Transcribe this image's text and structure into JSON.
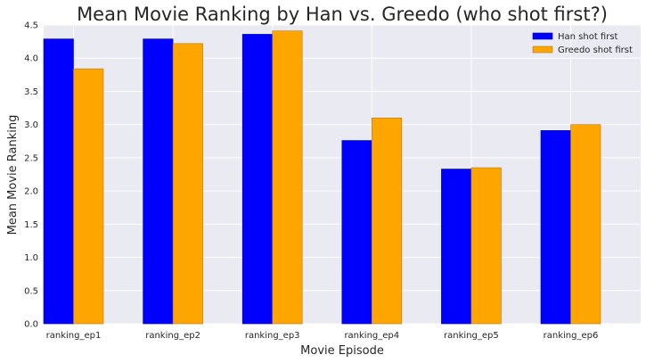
{
  "chart_data": {
    "type": "bar",
    "title": "Mean Movie Ranking by Han vs. Greedo (who shot first?)",
    "xlabel": "Movie Episode",
    "ylabel": "Mean Movie Ranking",
    "ylim": [
      0,
      4.5
    ],
    "yticks": [
      0.0,
      0.5,
      1.0,
      1.5,
      2.0,
      2.5,
      3.0,
      3.5,
      4.0,
      4.5
    ],
    "ytick_labels": [
      "0.0",
      "0.5",
      "1.0",
      "1.5",
      "2.0",
      "2.5",
      "3.0",
      "3.5",
      "4.0",
      "4.5"
    ],
    "categories": [
      "ranking_ep1",
      "ranking_ep2",
      "ranking_ep3",
      "ranking_ep4",
      "ranking_ep5",
      "ranking_ep6"
    ],
    "series": [
      {
        "name": "Han shot first",
        "color": "#0000ff",
        "values": [
          4.29,
          4.29,
          4.36,
          2.76,
          2.33,
          2.91
        ]
      },
      {
        "name": "Greedo shot first",
        "color": "#ffa500",
        "values": [
          3.84,
          4.22,
          4.41,
          3.1,
          2.35,
          3.0
        ]
      }
    ],
    "grid": true,
    "legend_position": "top-right"
  }
}
